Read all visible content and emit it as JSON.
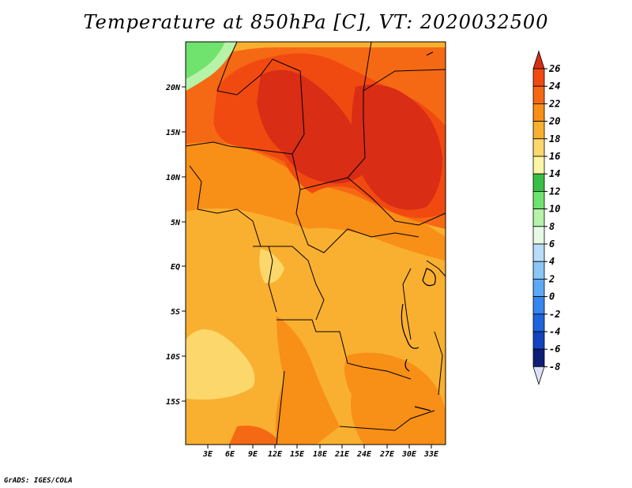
{
  "title": "Temperature at 850hPa [C], VT: 2020032500",
  "credit": "GrADS: IGES/COLA",
  "map": {
    "lat_labels": [
      "20N",
      "15N",
      "10N",
      "5N",
      "EQ",
      "5S",
      "10S",
      "15S"
    ],
    "lon_labels": [
      "3E",
      "6E",
      "9E",
      "12E",
      "15E",
      "18E",
      "21E",
      "24E",
      "27E",
      "30E",
      "33E"
    ]
  },
  "colorbar": {
    "levels": [
      "26",
      "24",
      "22",
      "20",
      "18",
      "16",
      "14",
      "12",
      "10",
      "8",
      "6",
      "4",
      "2",
      "0",
      "-2",
      "-4",
      "-6",
      "-8"
    ],
    "colors_top_to_bottom": [
      "#d92d15",
      "#f14a10",
      "#f66914",
      "#f88f16",
      "#f9b030",
      "#fcd86c",
      "#fcf6a4",
      "#37c045",
      "#70e26e",
      "#b4f3a8",
      "#e6fae6",
      "#b8ddf8",
      "#8ac6f6",
      "#5ca9f4",
      "#3487ee",
      "#1e65dc",
      "#1045bd",
      "#0d1e76",
      "#dde1f8"
    ]
  }
}
